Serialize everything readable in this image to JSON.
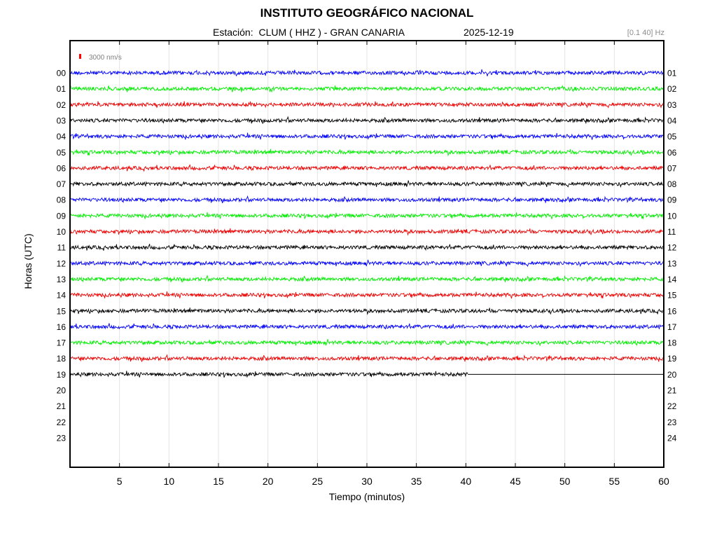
{
  "header": {
    "title": "INSTITUTO GEOGRÁFICO NACIONAL",
    "station_label": "Estación:",
    "station_value": "CLUM ( HHZ ) - GRAN CANARIA",
    "date": "2025-12-19",
    "filter": "[0.1 40] Hz"
  },
  "chart_data": {
    "type": "line",
    "title": "INSTITUTO GEOGRÁFICO NACIONAL",
    "xlabel": "Tiempo (minutos)",
    "ylabel": "Horas (UTC)",
    "xlim": [
      0,
      60
    ],
    "x_ticks": [
      5,
      10,
      15,
      20,
      25,
      30,
      35,
      40,
      45,
      50,
      55,
      60
    ],
    "y_ticks_left": [
      "00",
      "01",
      "02",
      "03",
      "04",
      "05",
      "06",
      "07",
      "08",
      "09",
      "10",
      "11",
      "12",
      "13",
      "14",
      "15",
      "16",
      "17",
      "18",
      "19",
      "20",
      "21",
      "22",
      "23"
    ],
    "y_ticks_right": [
      "01",
      "02",
      "03",
      "04",
      "05",
      "06",
      "07",
      "08",
      "09",
      "10",
      "11",
      "12",
      "13",
      "14",
      "15",
      "16",
      "17",
      "18",
      "19",
      "20",
      "21",
      "22",
      "23",
      "24"
    ],
    "grid": true,
    "scale_label": "3000 nm/s",
    "scale_color": "#ff0000",
    "color_cycle": [
      "#0000ff",
      "#00ee00",
      "#ee0000",
      "#000000"
    ],
    "series": [
      {
        "hour": "00",
        "end_minute": 60
      },
      {
        "hour": "01",
        "end_minute": 60
      },
      {
        "hour": "02",
        "end_minute": 60
      },
      {
        "hour": "03",
        "end_minute": 60
      },
      {
        "hour": "04",
        "end_minute": 60
      },
      {
        "hour": "05",
        "end_minute": 60
      },
      {
        "hour": "06",
        "end_minute": 60
      },
      {
        "hour": "07",
        "end_minute": 60
      },
      {
        "hour": "08",
        "end_minute": 60
      },
      {
        "hour": "09",
        "end_minute": 60
      },
      {
        "hour": "10",
        "end_minute": 60
      },
      {
        "hour": "11",
        "end_minute": 60
      },
      {
        "hour": "12",
        "end_minute": 60
      },
      {
        "hour": "13",
        "end_minute": 60
      },
      {
        "hour": "14",
        "end_minute": 60
      },
      {
        "hour": "15",
        "end_minute": 60
      },
      {
        "hour": "16",
        "end_minute": 60
      },
      {
        "hour": "17",
        "end_minute": 60
      },
      {
        "hour": "18",
        "end_minute": 60
      },
      {
        "hour": "19",
        "end_minute": 40.2
      }
    ]
  }
}
